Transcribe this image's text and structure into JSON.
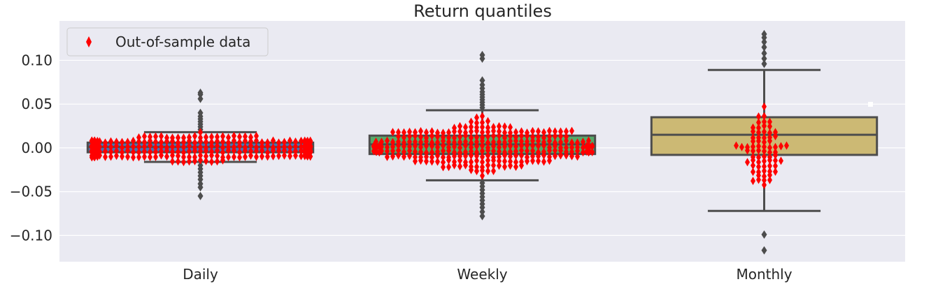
{
  "chart_data": {
    "type": "box",
    "title": "Return quantiles",
    "xlabel": "",
    "ylabel": "",
    "categories": [
      "Daily",
      "Weekly",
      "Monthly"
    ],
    "ylim": [
      -0.13,
      0.145
    ],
    "yticks": [
      -0.1,
      -0.05,
      0.0,
      0.05,
      0.1
    ],
    "ytick_labels": [
      "−0.10",
      "−0.05",
      "0.00",
      "0.05",
      "0.10"
    ],
    "grid": true,
    "legend": {
      "position": "top-left",
      "entries": [
        "Out-of-sample data"
      ]
    },
    "colors": {
      "background": "#eaeaf2",
      "grid": "#ffffff",
      "box_line": "#4d4d4d",
      "outlier": "#4d4d4d",
      "points": "#ff0000",
      "Daily": "#4c72b0",
      "Weekly": "#55a868",
      "Monthly": "#ccb974"
    },
    "boxes": [
      {
        "name": "Daily",
        "q1": -0.005,
        "median": 0.001,
        "q3": 0.006,
        "whisker_low": -0.016,
        "whisker_high": 0.018,
        "outliers": [
          0.021,
          0.024,
          0.027,
          0.03,
          0.033,
          0.036,
          0.04,
          0.056,
          0.061,
          0.063,
          -0.02,
          -0.024,
          -0.028,
          -0.032,
          -0.036,
          -0.041,
          -0.045,
          -0.055
        ]
      },
      {
        "name": "Weekly",
        "q1": -0.007,
        "median": 0.004,
        "q3": 0.014,
        "whisker_low": -0.037,
        "whisker_high": 0.043,
        "outliers": [
          0.046,
          0.049,
          0.052,
          0.055,
          0.058,
          0.061,
          0.064,
          0.068,
          0.072,
          0.077,
          0.102,
          0.106,
          -0.04,
          -0.044,
          -0.048,
          -0.052,
          -0.056,
          -0.06,
          -0.064,
          -0.068,
          -0.073,
          -0.078
        ]
      },
      {
        "name": "Monthly",
        "q1": -0.008,
        "median": 0.015,
        "q3": 0.035,
        "whisker_low": -0.072,
        "whisker_high": 0.089,
        "outliers": [
          0.096,
          0.102,
          0.108,
          0.115,
          0.121,
          0.126,
          0.13,
          -0.099,
          -0.117
        ]
      }
    ],
    "swarm_summary": [
      {
        "category": "Daily",
        "n_points": 420,
        "spread": 0.01
      },
      {
        "category": "Weekly",
        "n_points": 300,
        "spread": 0.022
      },
      {
        "category": "Monthly",
        "n_points": 70,
        "spread": 0.035
      }
    ]
  }
}
